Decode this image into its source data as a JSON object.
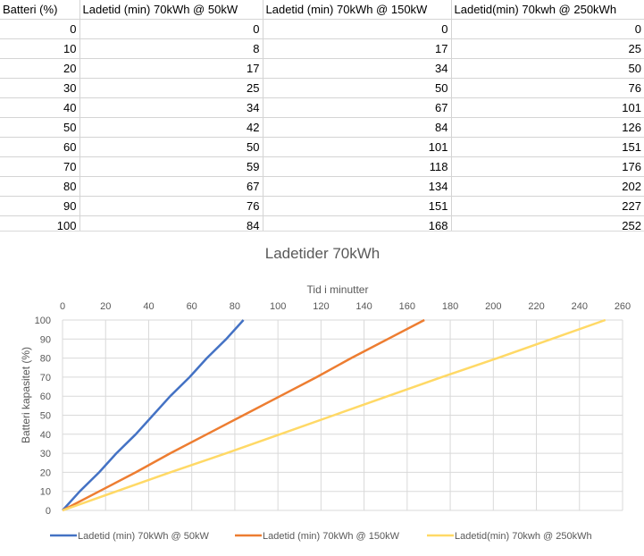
{
  "table": {
    "headers": [
      "Batteri (%)",
      "Ladetid (min) 70kWh @ 50kW",
      "Ladetid (min) 70kWh @ 150kW",
      "Ladetid(min) 70kwh @ 250kWh"
    ],
    "rows": [
      [
        "0",
        "0",
        "0",
        "0"
      ],
      [
        "10",
        "8",
        "17",
        "25"
      ],
      [
        "20",
        "17",
        "34",
        "50"
      ],
      [
        "30",
        "25",
        "50",
        "76"
      ],
      [
        "40",
        "34",
        "67",
        "101"
      ],
      [
        "50",
        "42",
        "84",
        "126"
      ],
      [
        "60",
        "50",
        "101",
        "151"
      ],
      [
        "70",
        "59",
        "118",
        "176"
      ],
      [
        "80",
        "67",
        "134",
        "202"
      ],
      [
        "90",
        "76",
        "151",
        "227"
      ],
      [
        "100",
        "84",
        "168",
        "252"
      ]
    ]
  },
  "chart_data": {
    "type": "line",
    "title": "Ladetider 70kWh",
    "xlabel": "Tid i minutter",
    "ylabel": "Batteri kapasitet (%)",
    "xlim": [
      0,
      260
    ],
    "ylim": [
      0,
      100
    ],
    "xticks": [
      0,
      20,
      40,
      60,
      80,
      100,
      120,
      140,
      160,
      180,
      200,
      220,
      240,
      260
    ],
    "yticks": [
      0,
      10,
      20,
      30,
      40,
      50,
      60,
      70,
      80,
      90,
      100
    ],
    "x_axis_position": "top",
    "grid": true,
    "legend_position": "bottom",
    "y": [
      0,
      10,
      20,
      30,
      40,
      50,
      60,
      70,
      80,
      90,
      100
    ],
    "series": [
      {
        "name": "Ladetid (min) 70kWh @ 50kW",
        "color": "#4472c4",
        "x": [
          0,
          8,
          17,
          25,
          34,
          42,
          50,
          59,
          67,
          76,
          84
        ]
      },
      {
        "name": "Ladetid (min) 70kWh @ 150kW",
        "color": "#ed7d31",
        "x": [
          0,
          17,
          34,
          50,
          67,
          84,
          101,
          118,
          134,
          151,
          168
        ]
      },
      {
        "name": "Ladetid(min) 70kwh @ 250kWh",
        "color": "#ffd966",
        "x": [
          0,
          25,
          50,
          76,
          101,
          126,
          151,
          176,
          202,
          227,
          252
        ]
      }
    ]
  }
}
